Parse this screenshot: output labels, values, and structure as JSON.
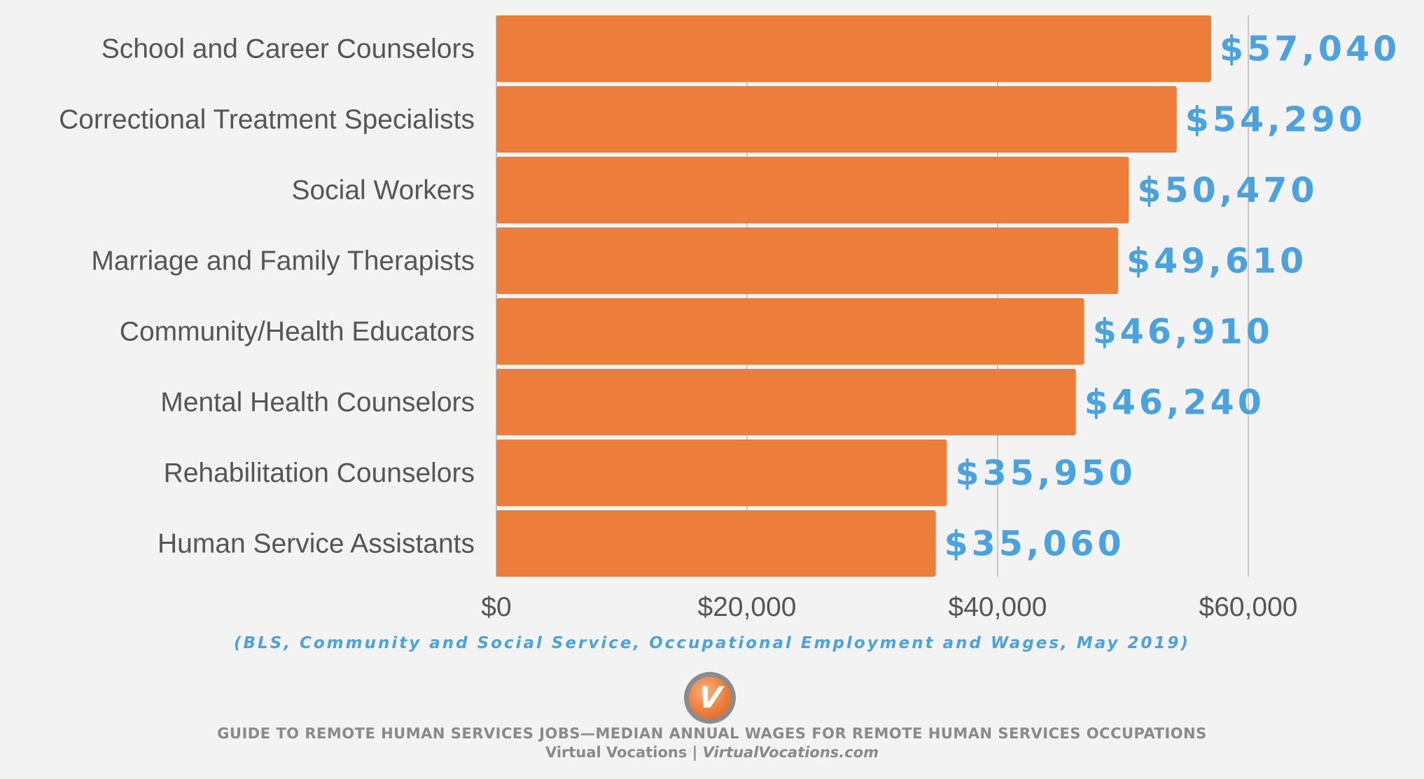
{
  "chart_data": {
    "type": "bar",
    "orientation": "horizontal",
    "categories": [
      "School and Career Counselors",
      "Correctional Treatment Specialists",
      "Social Workers",
      "Marriage and Family Therapists",
      "Community/Health Educators",
      "Mental Health Counselors",
      "Rehabilitation Counselors",
      "Human Service Assistants"
    ],
    "values": [
      57040,
      54290,
      50470,
      49610,
      46910,
      46240,
      35950,
      35060
    ],
    "value_labels": [
      "$57,040",
      "$54,290",
      "$50,470",
      "$49,610",
      "$46,910",
      "$46,240",
      "$35,950",
      "$35,060"
    ],
    "x_ticks": [
      0,
      20000,
      40000,
      60000
    ],
    "x_tick_labels": [
      "$0",
      "$20,000",
      "$40,000",
      "$60,000"
    ],
    "xlim": [
      0,
      60000
    ],
    "grid": "vertical",
    "colors": {
      "bar": "#ed7d3b",
      "value_label": "#4aa3df",
      "text": "#555555",
      "grid": "#c8c8c8"
    }
  },
  "source": "(BLS, Community and Social Service, Occupational Employment and Wages, May 2019)",
  "logo": {
    "letter": "V"
  },
  "footer": {
    "title": "GUIDE TO REMOTE HUMAN SERVICES JOBS—MEDIAN ANNUAL WAGES FOR REMOTE HUMAN SERVICES OCCUPATIONS",
    "brand": "Virtual Vocations",
    "separator": " | ",
    "site": "VirtualVocations.com"
  }
}
